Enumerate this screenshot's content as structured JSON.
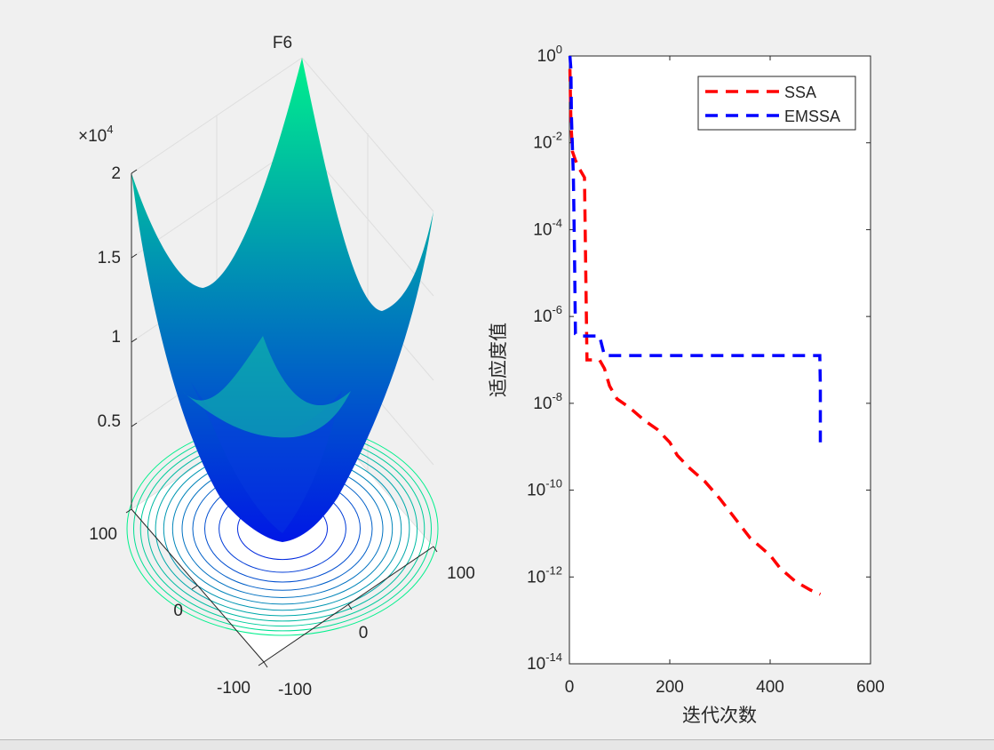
{
  "chart_data": [
    {
      "type": "surface",
      "title": "F6",
      "z_exponent_label": "×10",
      "z_exponent": "4",
      "z_ticks": [
        "0.5",
        "1",
        "1.5",
        "2"
      ],
      "x_ticks": [
        "100",
        "0",
        "-100"
      ],
      "y_ticks": [
        "-100",
        "0",
        "100"
      ],
      "x_range": [
        -100,
        100
      ],
      "y_range": [
        -100,
        100
      ],
      "z_range": [
        0,
        20000
      ],
      "contour_levels": 12,
      "colormap": [
        "#0017e6",
        "#00f08c"
      ]
    },
    {
      "type": "line",
      "yscale": "log",
      "xlabel": "迭代次数",
      "ylabel": "适应度值",
      "xlim": [
        0,
        600
      ],
      "ylim_exp": [
        -14,
        0
      ],
      "x_ticks": [
        "0",
        "200",
        "400",
        "600"
      ],
      "y_tick_base": "10",
      "y_tick_exponents": [
        "0",
        "-2",
        "-4",
        "-6",
        "-8",
        "-10",
        "-12",
        "-14"
      ],
      "legend_position": "top-right",
      "series": [
        {
          "name": "SSA",
          "color": "#ff0000",
          "style": "dashed",
          "points": [
            [
              1,
              -0.3
            ],
            [
              3,
              -1.5
            ],
            [
              6,
              -2.2
            ],
            [
              12,
              -2.4
            ],
            [
              20,
              -2.6
            ],
            [
              30,
              -2.8
            ],
            [
              32,
              -4.5
            ],
            [
              35,
              -7.0
            ],
            [
              40,
              -7.0
            ],
            [
              60,
              -7.0
            ],
            [
              70,
              -7.2
            ],
            [
              80,
              -7.6
            ],
            [
              95,
              -7.9
            ],
            [
              120,
              -8.1
            ],
            [
              150,
              -8.4
            ],
            [
              175,
              -8.6
            ],
            [
              200,
              -8.9
            ],
            [
              215,
              -9.2
            ],
            [
              240,
              -9.5
            ],
            [
              270,
              -9.8
            ],
            [
              300,
              -10.2
            ],
            [
              320,
              -10.5
            ],
            [
              360,
              -11.1
            ],
            [
              400,
              -11.5
            ],
            [
              420,
              -11.8
            ],
            [
              450,
              -12.1
            ],
            [
              480,
              -12.3
            ],
            [
              500,
              -12.4
            ]
          ]
        },
        {
          "name": "EMSSA",
          "color": "#0000ff",
          "style": "dashed",
          "points": [
            [
              1,
              0
            ],
            [
              3,
              -0.3
            ],
            [
              4,
              -1.4
            ],
            [
              8,
              -2.8
            ],
            [
              10,
              -4.3
            ],
            [
              12,
              -6.4
            ],
            [
              20,
              -6.45
            ],
            [
              60,
              -6.45
            ],
            [
              70,
              -6.9
            ],
            [
              100,
              -6.9
            ],
            [
              300,
              -6.9
            ],
            [
              499,
              -6.9
            ],
            [
              500,
              -7.6
            ],
            [
              500,
              -8.9
            ]
          ]
        }
      ]
    }
  ]
}
